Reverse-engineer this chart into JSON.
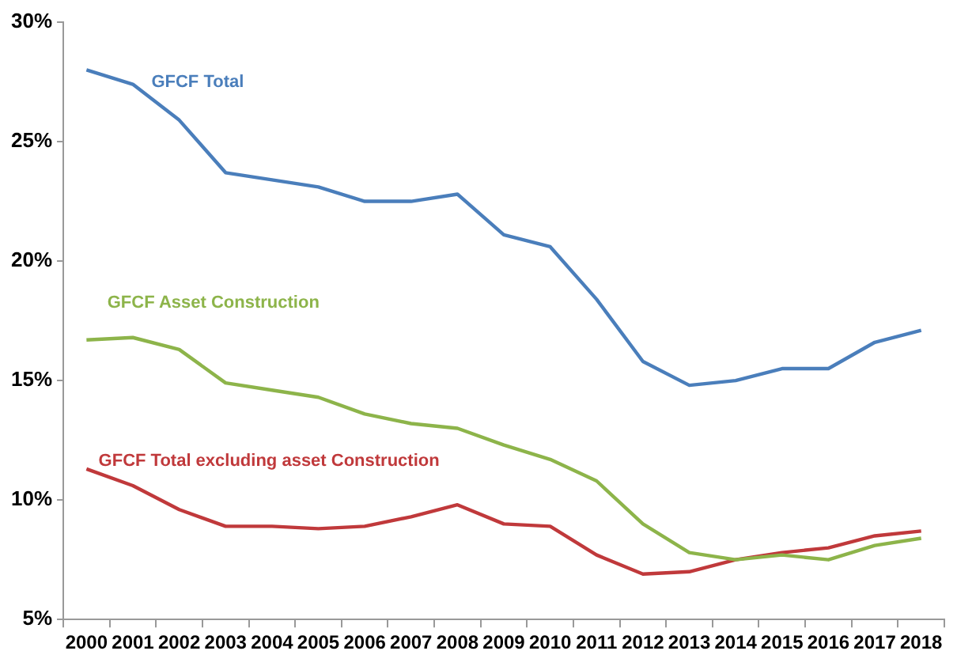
{
  "chart_data": {
    "type": "line",
    "categories": [
      "2000",
      "2001",
      "2002",
      "2003",
      "2004",
      "2005",
      "2006",
      "2007",
      "2008",
      "2009",
      "2010",
      "2011",
      "2012",
      "2013",
      "2014",
      "2015",
      "2016",
      "2017",
      "2018"
    ],
    "series": [
      {
        "name": "GFCF Total",
        "color": "#4a7ebb",
        "values": [
          28.0,
          27.4,
          25.9,
          23.7,
          23.4,
          23.1,
          22.5,
          22.5,
          22.8,
          21.1,
          20.6,
          18.4,
          15.8,
          14.8,
          15.0,
          15.5,
          15.5,
          16.6,
          17.1
        ]
      },
      {
        "name": "GFCF Asset Construction",
        "color": "#8db44a",
        "values": [
          16.7,
          16.8,
          16.3,
          14.9,
          14.6,
          14.3,
          13.6,
          13.2,
          13.0,
          12.3,
          11.7,
          10.8,
          9.0,
          7.8,
          7.5,
          7.7,
          7.5,
          8.1,
          8.4
        ]
      },
      {
        "name": "GFCF Total excluding asset Construction",
        "color": "#c0393b",
        "values": [
          11.3,
          10.6,
          9.6,
          8.9,
          8.9,
          8.8,
          8.9,
          9.3,
          9.8,
          9.0,
          8.9,
          7.7,
          6.9,
          7.0,
          7.5,
          7.8,
          8.0,
          8.5,
          8.7
        ]
      }
    ],
    "ylim": [
      5,
      30
    ],
    "yticks": [
      {
        "value": 5,
        "label": "5%"
      },
      {
        "value": 10,
        "label": "10%"
      },
      {
        "value": 15,
        "label": "15%"
      },
      {
        "value": 20,
        "label": "20%"
      },
      {
        "value": 25,
        "label": "25%"
      },
      {
        "value": 30,
        "label": "30%"
      }
    ],
    "grid": false,
    "legend": false,
    "marker": "none",
    "line_style": "solid"
  }
}
